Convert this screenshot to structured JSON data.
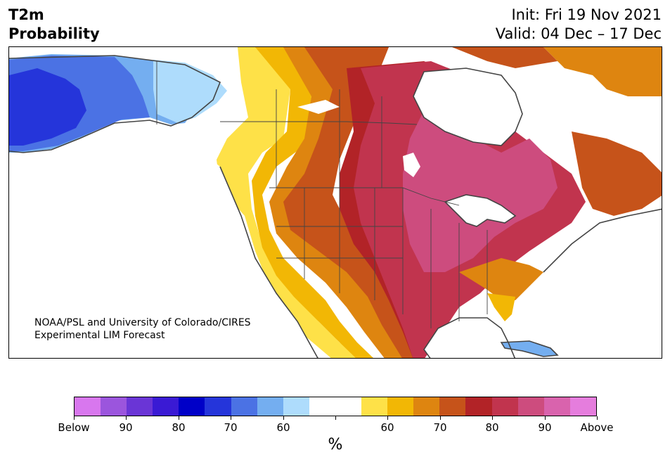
{
  "header": {
    "variable": "T2m",
    "product": "Probability",
    "init": "Init: Fri 19 Nov 2021",
    "valid": "Valid: 04 Dec – 17 Dec"
  },
  "credit": {
    "line1": "NOAA/PSL and University of Colorado/CIRES",
    "line2": "Experimental LIM Forecast"
  },
  "colorbar": {
    "colors": [
      "#d877ee",
      "#9b55dd",
      "#6a35d6",
      "#3a1ad4",
      "#0000c8",
      "#2535da",
      "#4b72e4",
      "#74aef0",
      "#aedcfc",
      "#ffffff",
      "#ffffff",
      "#fee148",
      "#f2b705",
      "#de8510",
      "#c6531a",
      "#b22327",
      "#c1344e",
      "#cd4c7e",
      "#d963ad",
      "#e57ddd"
    ],
    "tick_labels": [
      "Below",
      "90",
      "80",
      "70",
      "60",
      "",
      "60",
      "70",
      "80",
      "90",
      "Above"
    ],
    "unit": "%"
  },
  "map": {
    "region": "North America",
    "colors": {
      "white": "#ffffff",
      "blue_dark": "#2535da",
      "blue_mid": "#4b72e4",
      "blue_light": "#74aef0",
      "blue_pale": "#aedcfc",
      "yellow": "#fee148",
      "gold": "#f2b705",
      "orange": "#de8510",
      "dark_orange": "#c6531a",
      "red": "#b22327",
      "crimson": "#c1344e",
      "rose": "#cd4c7e",
      "border": "#444444"
    }
  }
}
